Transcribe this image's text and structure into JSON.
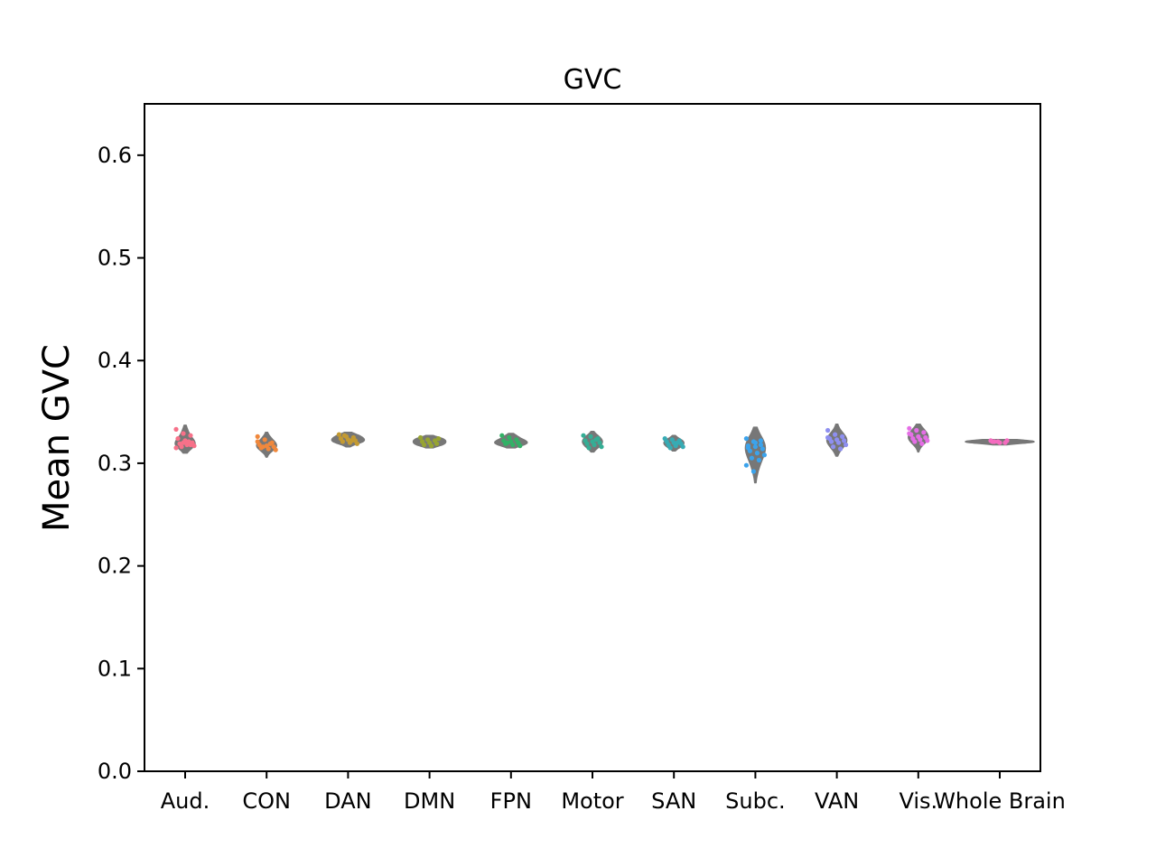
{
  "chart_data": {
    "type": "violin",
    "title": "GVC",
    "ylabel": "Mean GVC",
    "xlabel": "",
    "ylim": [
      0.0,
      0.65
    ],
    "yticks": [
      "0.0",
      "0.1",
      "0.2",
      "0.3",
      "0.4",
      "0.5",
      "0.6"
    ],
    "grid": false,
    "legend": "none",
    "violin_color": "#777777",
    "categories": [
      {
        "name": "Aud.",
        "color": "#f77189",
        "range": [
          0.31,
          0.337
        ],
        "points": [
          0.333,
          0.329,
          0.327,
          0.324,
          0.322,
          0.32,
          0.319,
          0.318,
          0.317,
          0.316,
          0.321,
          0.315,
          0.32,
          0.318
        ]
      },
      {
        "name": "CON",
        "color": "#f0883c",
        "range": [
          0.306,
          0.33
        ],
        "points": [
          0.326,
          0.323,
          0.32,
          0.318,
          0.317,
          0.316,
          0.315,
          0.314,
          0.313,
          0.316,
          0.319,
          0.321
        ]
      },
      {
        "name": "DAN",
        "color": "#c39a32",
        "range": [
          0.316,
          0.33
        ],
        "points": [
          0.328,
          0.326,
          0.325,
          0.324,
          0.323,
          0.322,
          0.321,
          0.32,
          0.319,
          0.327,
          0.322
        ]
      },
      {
        "name": "DMN",
        "color": "#97a431",
        "range": [
          0.315,
          0.327
        ],
        "points": [
          0.325,
          0.323,
          0.322,
          0.321,
          0.32,
          0.319,
          0.318,
          0.317,
          0.324
        ]
      },
      {
        "name": "FPN",
        "color": "#32b166",
        "range": [
          0.315,
          0.329
        ],
        "points": [
          0.327,
          0.325,
          0.323,
          0.322,
          0.321,
          0.32,
          0.319,
          0.318,
          0.317,
          0.32
        ]
      },
      {
        "name": "Motor",
        "color": "#34ae95",
        "range": [
          0.311,
          0.331
        ],
        "points": [
          0.327,
          0.326,
          0.324,
          0.322,
          0.321,
          0.32,
          0.319,
          0.318,
          0.316,
          0.315,
          0.323
        ]
      },
      {
        "name": "SAN",
        "color": "#37abb4",
        "range": [
          0.312,
          0.327
        ],
        "points": [
          0.324,
          0.323,
          0.322,
          0.321,
          0.32,
          0.319,
          0.318,
          0.317,
          0.316,
          0.315,
          0.32
        ]
      },
      {
        "name": "Subc.",
        "color": "#3ba3ec",
        "range": [
          0.281,
          0.335
        ],
        "points": [
          0.324,
          0.321,
          0.318,
          0.317,
          0.316,
          0.314,
          0.312,
          0.31,
          0.308,
          0.305,
          0.303,
          0.298,
          0.292,
          0.322,
          0.315,
          0.32
        ]
      },
      {
        "name": "VAN",
        "color": "#8e8ff0",
        "range": [
          0.307,
          0.338
        ],
        "points": [
          0.332,
          0.328,
          0.326,
          0.324,
          0.323,
          0.322,
          0.321,
          0.32,
          0.318,
          0.316,
          0.314,
          0.325
        ]
      },
      {
        "name": "Vis.",
        "color": "#e56ee6",
        "range": [
          0.311,
          0.338
        ],
        "points": [
          0.334,
          0.332,
          0.33,
          0.328,
          0.326,
          0.325,
          0.324,
          0.323,
          0.322,
          0.321,
          0.319,
          0.329
        ]
      },
      {
        "name": "Whole Brain",
        "color": "#f56bbf",
        "range": [
          0.318,
          0.323
        ],
        "points": [
          0.322,
          0.321,
          0.32,
          0.321,
          0.32,
          0.322,
          0.321
        ]
      }
    ]
  }
}
